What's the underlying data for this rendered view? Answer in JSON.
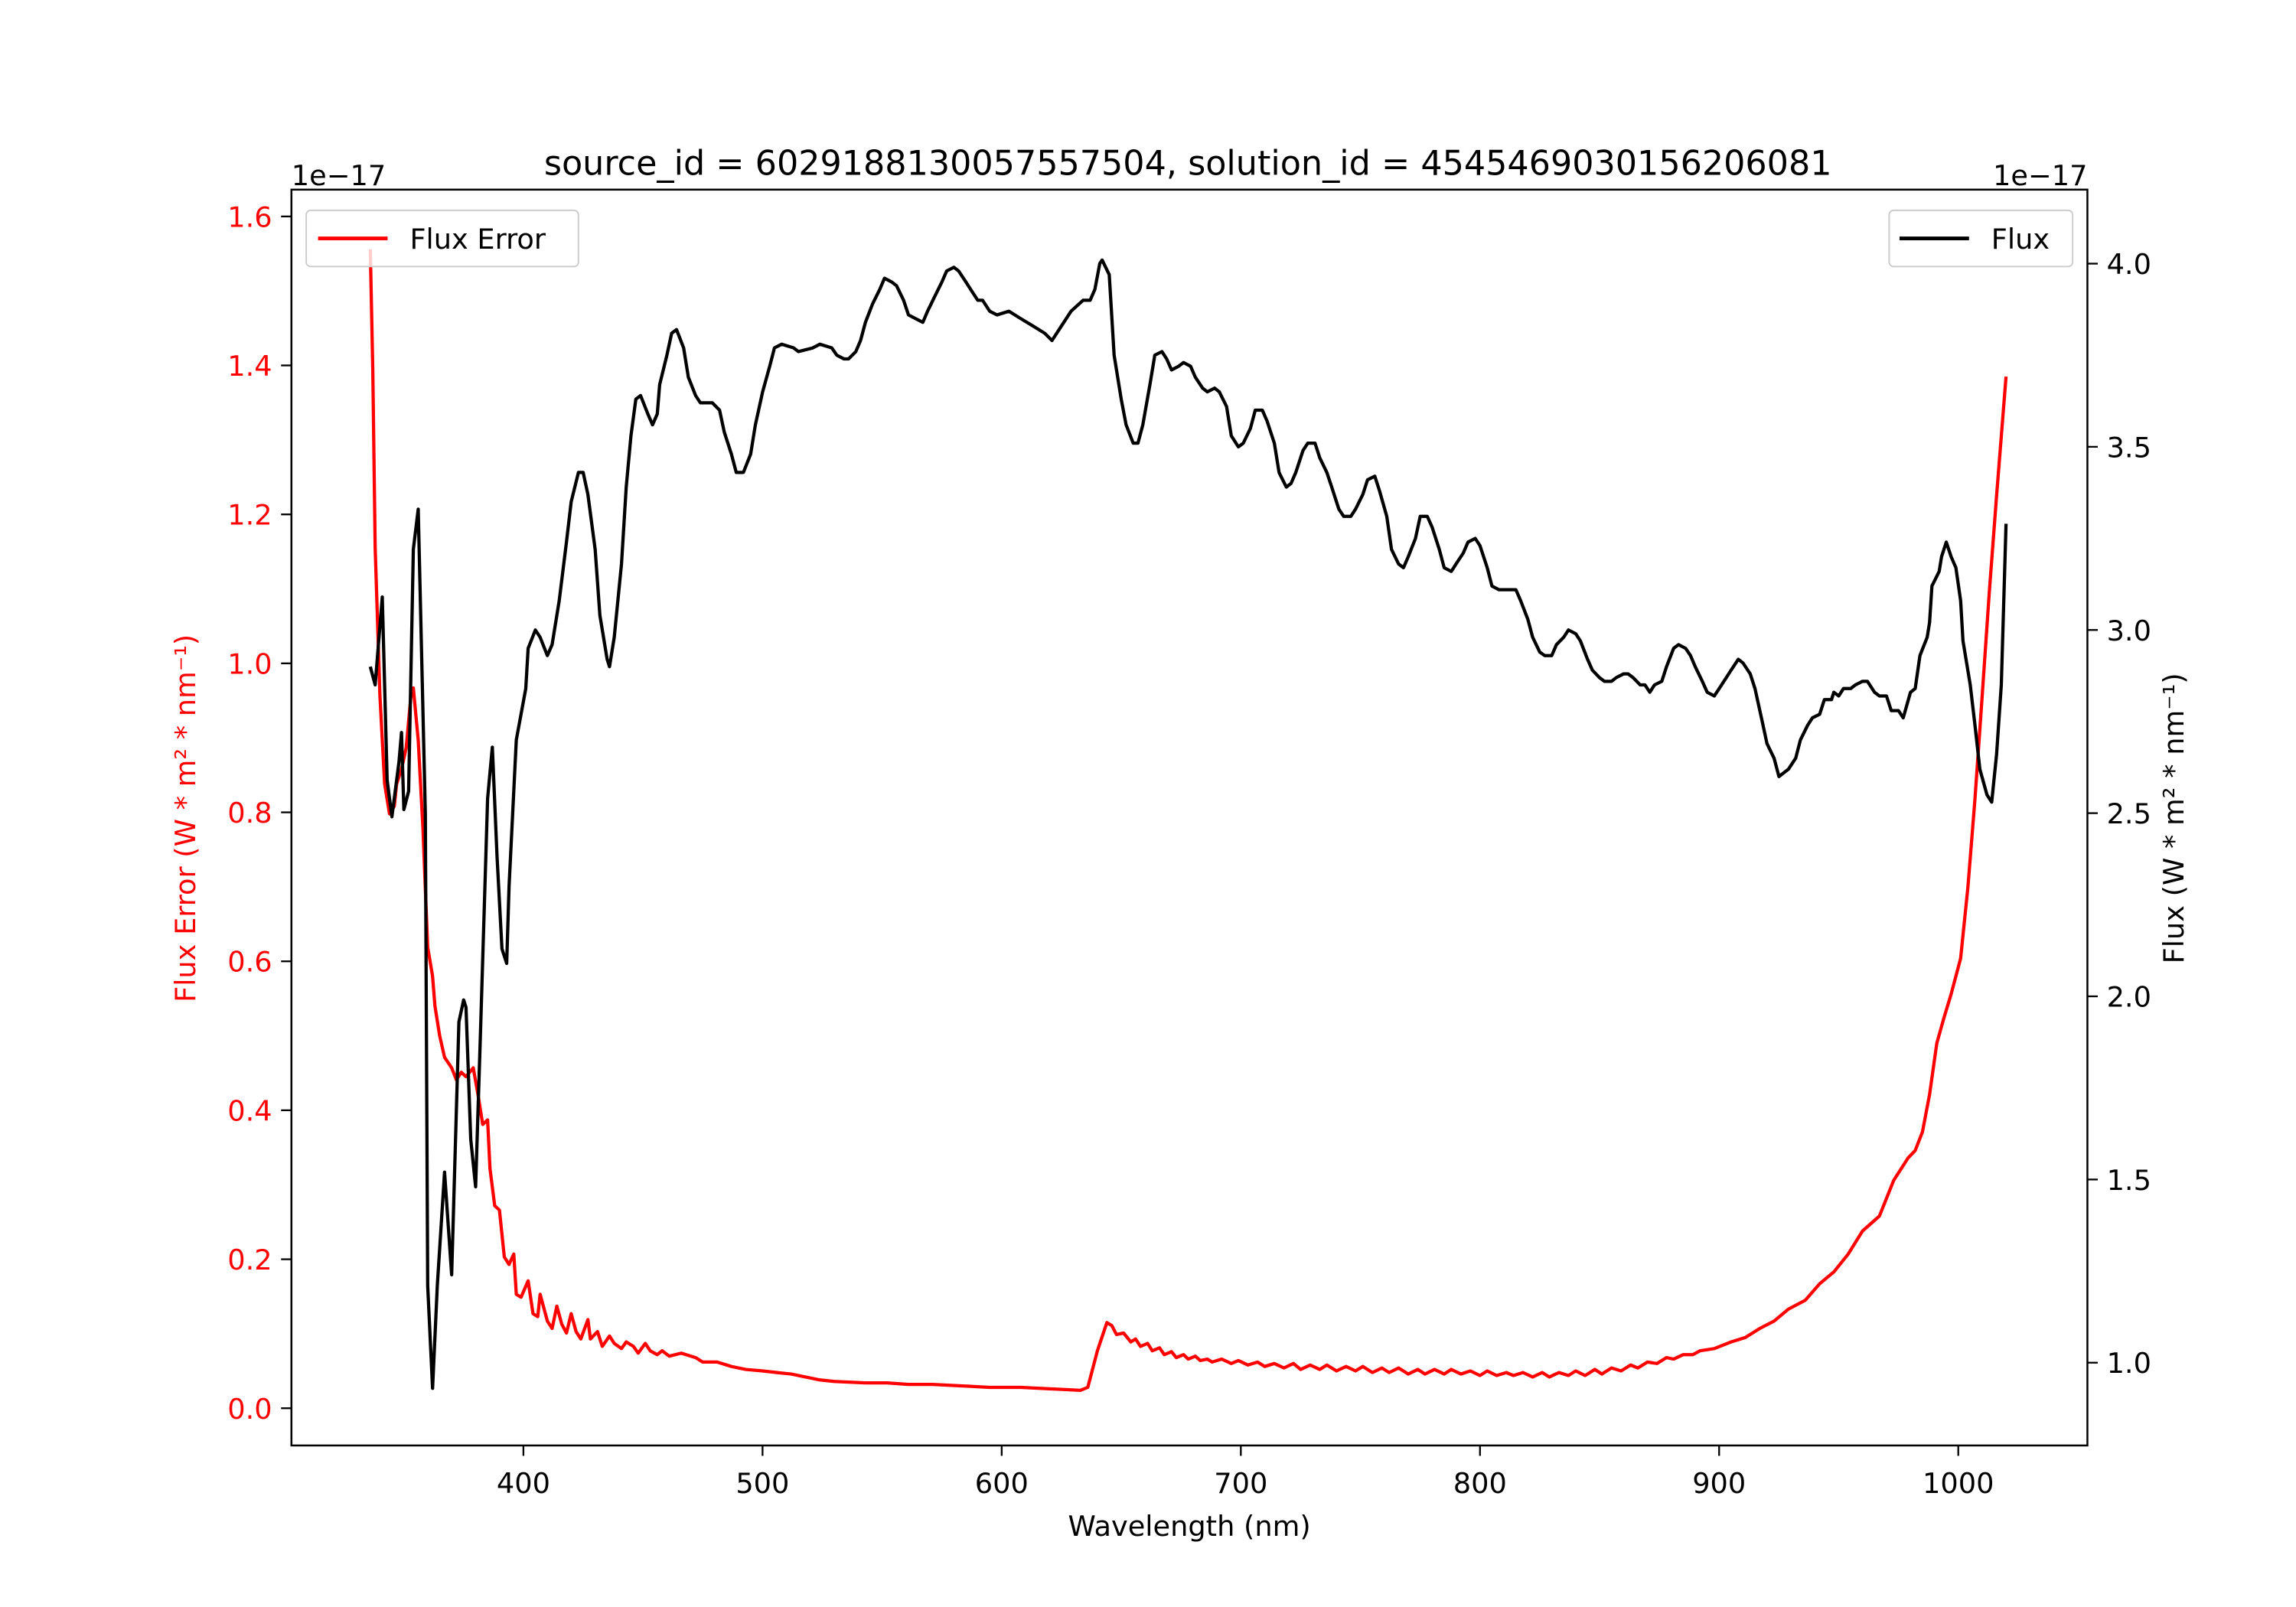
{
  "chart_data": {
    "type": "line",
    "title": "source_id = 6029188130057557504, solution_id = 4545469030156206081",
    "xlabel": "Wavelength (nm)",
    "ylabel_left": "Flux Error (W * m² * nm⁻¹)",
    "ylabel_right": "Flux (W * m² * nm⁻¹)",
    "offset_left": "1e−17",
    "offset_right": "1e−17",
    "xlim": [
      303,
      1054
    ],
    "ylim_left": [
      -0.05,
      1.636
    ],
    "ylim_right": [
      0.774,
      4.202
    ],
    "x_ticks": [
      "400",
      "500",
      "600",
      "700",
      "800",
      "900",
      "1000"
    ],
    "y_left_ticks": [
      "0.0",
      "0.2",
      "0.4",
      "0.6",
      "0.8",
      "1.0",
      "1.2",
      "1.4",
      "1.6"
    ],
    "y_right_ticks": [
      "1.0",
      "1.5",
      "2.0",
      "2.5",
      "3.0",
      "3.5",
      "4.0"
    ],
    "grid": false,
    "colors": {
      "flux_error": "#ff0000",
      "flux": "#000000"
    },
    "legends": [
      {
        "label": "Flux Error",
        "placement": "top-left",
        "series": "flux_error"
      },
      {
        "label": "Flux",
        "placement": "top-right",
        "series": "flux"
      }
    ],
    "series": [
      {
        "name": "Flux Error",
        "axis": "left",
        "x": [
          336,
          337,
          338,
          340,
          342,
          344,
          346,
          347,
          349,
          351,
          353,
          354,
          356,
          358,
          360,
          362,
          363,
          365,
          367,
          370,
          372,
          374,
          376,
          379,
          381,
          383,
          385,
          386,
          388,
          390,
          392,
          394,
          396,
          397,
          399,
          402,
          404,
          406,
          407,
          410,
          412,
          414,
          416,
          418,
          420,
          422,
          424,
          427,
          428,
          431,
          433,
          436,
          438,
          441,
          443,
          446,
          448,
          451,
          453,
          456,
          458,
          461,
          466,
          472,
          475,
          481,
          487,
          493,
          500,
          506,
          512,
          518,
          524,
          530,
          543,
          552,
          561,
          571,
          583,
          595,
          608,
          620,
          633,
          636,
          640,
          644,
          646,
          648,
          651,
          654,
          656,
          658,
          661,
          663,
          666,
          668,
          671,
          673,
          676,
          678,
          681,
          683,
          686,
          688,
          692,
          696,
          699,
          703,
          707,
          710,
          714,
          718,
          722,
          725,
          729,
          733,
          736,
          740,
          744,
          748,
          751,
          755,
          759,
          762,
          766,
          770,
          774,
          777,
          781,
          785,
          788,
          792,
          796,
          800,
          803,
          807,
          811,
          814,
          818,
          822,
          826,
          829,
          833,
          837,
          840,
          844,
          848,
          851,
          855,
          859,
          863,
          866,
          870,
          874,
          878,
          881,
          885,
          889,
          892,
          898,
          905,
          911,
          917,
          923,
          929,
          936,
          942,
          948,
          954,
          960,
          967,
          973,
          979,
          982,
          985,
          988,
          991,
          994,
          997,
          1001,
          1004,
          1007,
          1010,
          1013,
          1016,
          1020
        ],
        "y": [
          1.556,
          1.393,
          1.155,
          0.957,
          0.838,
          0.798,
          0.808,
          0.838,
          0.858,
          0.887,
          0.957,
          0.967,
          0.897,
          0.778,
          0.619,
          0.58,
          0.54,
          0.5,
          0.471,
          0.457,
          0.441,
          0.451,
          0.445,
          0.457,
          0.421,
          0.381,
          0.387,
          0.322,
          0.272,
          0.266,
          0.203,
          0.193,
          0.207,
          0.153,
          0.149,
          0.171,
          0.127,
          0.123,
          0.153,
          0.117,
          0.107,
          0.137,
          0.113,
          0.101,
          0.127,
          0.103,
          0.093,
          0.119,
          0.093,
          0.103,
          0.083,
          0.097,
          0.087,
          0.08,
          0.089,
          0.083,
          0.074,
          0.087,
          0.077,
          0.072,
          0.077,
          0.07,
          0.074,
          0.068,
          0.062,
          0.062,
          0.056,
          0.052,
          0.05,
          0.048,
          0.046,
          0.042,
          0.038,
          0.036,
          0.034,
          0.034,
          0.032,
          0.032,
          0.03,
          0.028,
          0.028,
          0.026,
          0.024,
          0.028,
          0.077,
          0.115,
          0.111,
          0.099,
          0.101,
          0.089,
          0.093,
          0.083,
          0.087,
          0.077,
          0.081,
          0.072,
          0.076,
          0.068,
          0.072,
          0.066,
          0.07,
          0.064,
          0.066,
          0.062,
          0.066,
          0.06,
          0.064,
          0.058,
          0.062,
          0.056,
          0.06,
          0.054,
          0.06,
          0.052,
          0.058,
          0.052,
          0.058,
          0.05,
          0.056,
          0.05,
          0.056,
          0.048,
          0.054,
          0.048,
          0.054,
          0.046,
          0.052,
          0.046,
          0.052,
          0.046,
          0.052,
          0.046,
          0.05,
          0.044,
          0.05,
          0.044,
          0.048,
          0.044,
          0.048,
          0.042,
          0.048,
          0.042,
          0.048,
          0.044,
          0.05,
          0.044,
          0.052,
          0.046,
          0.054,
          0.05,
          0.058,
          0.054,
          0.062,
          0.06,
          0.068,
          0.066,
          0.072,
          0.072,
          0.077,
          0.08,
          0.089,
          0.095,
          0.107,
          0.117,
          0.133,
          0.145,
          0.167,
          0.183,
          0.207,
          0.238,
          0.258,
          0.306,
          0.336,
          0.346,
          0.371,
          0.421,
          0.49,
          0.524,
          0.556,
          0.604,
          0.699,
          0.818,
          0.957,
          1.096,
          1.225,
          1.385
        ]
      },
      {
        "name": "Flux",
        "axis": "right",
        "x": [
          336,
          338,
          341,
          343,
          345,
          348,
          349,
          350,
          352,
          354,
          356,
          359,
          360,
          362,
          364,
          367,
          370,
          373,
          375,
          376,
          378,
          380,
          382,
          385,
          387,
          389,
          391,
          393,
          394,
          397,
          401,
          402,
          405,
          407,
          410,
          412,
          415,
          418,
          420,
          423,
          425,
          427,
          430,
          432,
          435,
          436,
          438,
          441,
          443,
          445,
          447,
          449,
          452,
          454,
          456,
          457,
          460,
          462,
          464,
          467,
          469,
          472,
          474,
          479,
          482,
          484,
          487,
          489,
          492,
          495,
          497,
          500,
          503,
          505,
          508,
          513,
          515,
          521,
          524,
          529,
          531,
          534,
          536,
          539,
          541,
          543,
          546,
          549,
          551,
          554,
          556,
          559,
          561,
          564,
          567,
          569,
          572,
          575,
          577,
          580,
          582,
          585,
          587,
          590,
          592,
          595,
          598,
          603,
          608,
          613,
          618,
          621,
          624,
          629,
          634,
          637,
          639,
          641,
          642,
          645,
          647,
          650,
          652,
          655,
          657,
          659,
          662,
          664,
          667,
          669,
          671,
          674,
          676,
          679,
          681,
          684,
          686,
          689,
          691,
          694,
          696,
          699,
          701,
          704,
          706,
          709,
          711,
          714,
          716,
          719,
          721,
          723,
          726,
          728,
          731,
          733,
          736,
          738,
          741,
          743,
          746,
          748,
          751,
          753,
          756,
          758,
          761,
          763,
          766,
          768,
          770,
          773,
          775,
          778,
          780,
          783,
          785,
          788,
          790,
          793,
          795,
          798,
          800,
          803,
          805,
          808,
          810,
          813,
          815,
          817,
          820,
          822,
          825,
          827,
          830,
          832,
          835,
          837,
          840,
          842,
          845,
          847,
          850,
          852,
          855,
          857,
          860,
          862,
          864,
          867,
          869,
          871,
          873,
          876,
          878,
          881,
          883,
          886,
          888,
          890,
          893,
          895,
          898,
          900,
          903,
          905,
          908,
          910,
          913,
          915,
          918,
          920,
          923,
          925,
          927,
          929,
          932,
          934,
          937,
          939,
          942,
          944,
          947,
          948,
          950,
          952,
          955,
          957,
          960,
          962,
          965,
          967,
          970,
          972,
          975,
          977,
          980,
          982,
          984,
          987,
          988,
          989,
          992,
          993,
          995,
          997,
          999,
          1001,
          1002,
          1005,
          1007,
          1009,
          1012,
          1014,
          1016,
          1018,
          1020
        ],
        "y": [
          2.9,
          2.85,
          3.09,
          2.59,
          2.49,
          2.64,
          2.72,
          2.51,
          2.56,
          3.22,
          3.33,
          2.5,
          1.21,
          0.93,
          1.21,
          1.52,
          1.24,
          1.93,
          1.99,
          1.97,
          1.61,
          1.48,
          1.89,
          2.54,
          2.68,
          2.38,
          2.13,
          2.09,
          2.3,
          2.7,
          2.84,
          2.95,
          3.0,
          2.98,
          2.93,
          2.96,
          3.08,
          3.24,
          3.35,
          3.43,
          3.43,
          3.37,
          3.22,
          3.04,
          2.92,
          2.9,
          2.98,
          3.18,
          3.39,
          3.53,
          3.63,
          3.64,
          3.59,
          3.56,
          3.59,
          3.67,
          3.75,
          3.81,
          3.82,
          3.77,
          3.69,
          3.64,
          3.62,
          3.62,
          3.6,
          3.54,
          3.48,
          3.43,
          3.43,
          3.48,
          3.56,
          3.65,
          3.72,
          3.77,
          3.78,
          3.77,
          3.76,
          3.77,
          3.78,
          3.77,
          3.75,
          3.74,
          3.74,
          3.76,
          3.79,
          3.84,
          3.89,
          3.93,
          3.96,
          3.95,
          3.94,
          3.9,
          3.86,
          3.85,
          3.84,
          3.87,
          3.91,
          3.95,
          3.98,
          3.99,
          3.98,
          3.95,
          3.93,
          3.9,
          3.9,
          3.87,
          3.86,
          3.87,
          3.85,
          3.83,
          3.81,
          3.79,
          3.82,
          3.87,
          3.9,
          3.9,
          3.93,
          4.0,
          4.01,
          3.97,
          3.75,
          3.63,
          3.56,
          3.51,
          3.51,
          3.56,
          3.67,
          3.75,
          3.76,
          3.74,
          3.71,
          3.72,
          3.73,
          3.72,
          3.69,
          3.66,
          3.65,
          3.66,
          3.65,
          3.61,
          3.53,
          3.5,
          3.51,
          3.55,
          3.6,
          3.6,
          3.57,
          3.51,
          3.43,
          3.39,
          3.4,
          3.43,
          3.49,
          3.51,
          3.51,
          3.47,
          3.43,
          3.39,
          3.33,
          3.31,
          3.31,
          3.33,
          3.37,
          3.41,
          3.42,
          3.38,
          3.31,
          3.22,
          3.18,
          3.17,
          3.2,
          3.25,
          3.31,
          3.31,
          3.28,
          3.22,
          3.17,
          3.16,
          3.18,
          3.21,
          3.24,
          3.25,
          3.23,
          3.17,
          3.12,
          3.11,
          3.11,
          3.11,
          3.11,
          3.08,
          3.03,
          2.98,
          2.94,
          2.93,
          2.93,
          2.96,
          2.98,
          3.0,
          2.99,
          2.97,
          2.92,
          2.89,
          2.87,
          2.86,
          2.86,
          2.87,
          2.88,
          2.88,
          2.87,
          2.85,
          2.85,
          2.83,
          2.85,
          2.86,
          2.9,
          2.95,
          2.96,
          2.95,
          2.93,
          2.9,
          2.86,
          2.83,
          2.82,
          2.84,
          2.87,
          2.89,
          2.92,
          2.91,
          2.88,
          2.84,
          2.75,
          2.69,
          2.65,
          2.6,
          2.61,
          2.62,
          2.65,
          2.7,
          2.74,
          2.76,
          2.77,
          2.81,
          2.81,
          2.83,
          2.82,
          2.84,
          2.84,
          2.85,
          2.86,
          2.86,
          2.83,
          2.82,
          2.82,
          2.78,
          2.78,
          2.76,
          2.83,
          2.84,
          2.93,
          2.98,
          3.02,
          3.12,
          3.16,
          3.2,
          3.24,
          3.2,
          3.17,
          3.08,
          2.97,
          2.85,
          2.74,
          2.62,
          2.55,
          2.53,
          2.66,
          2.85,
          3.29
        ]
      }
    ]
  }
}
